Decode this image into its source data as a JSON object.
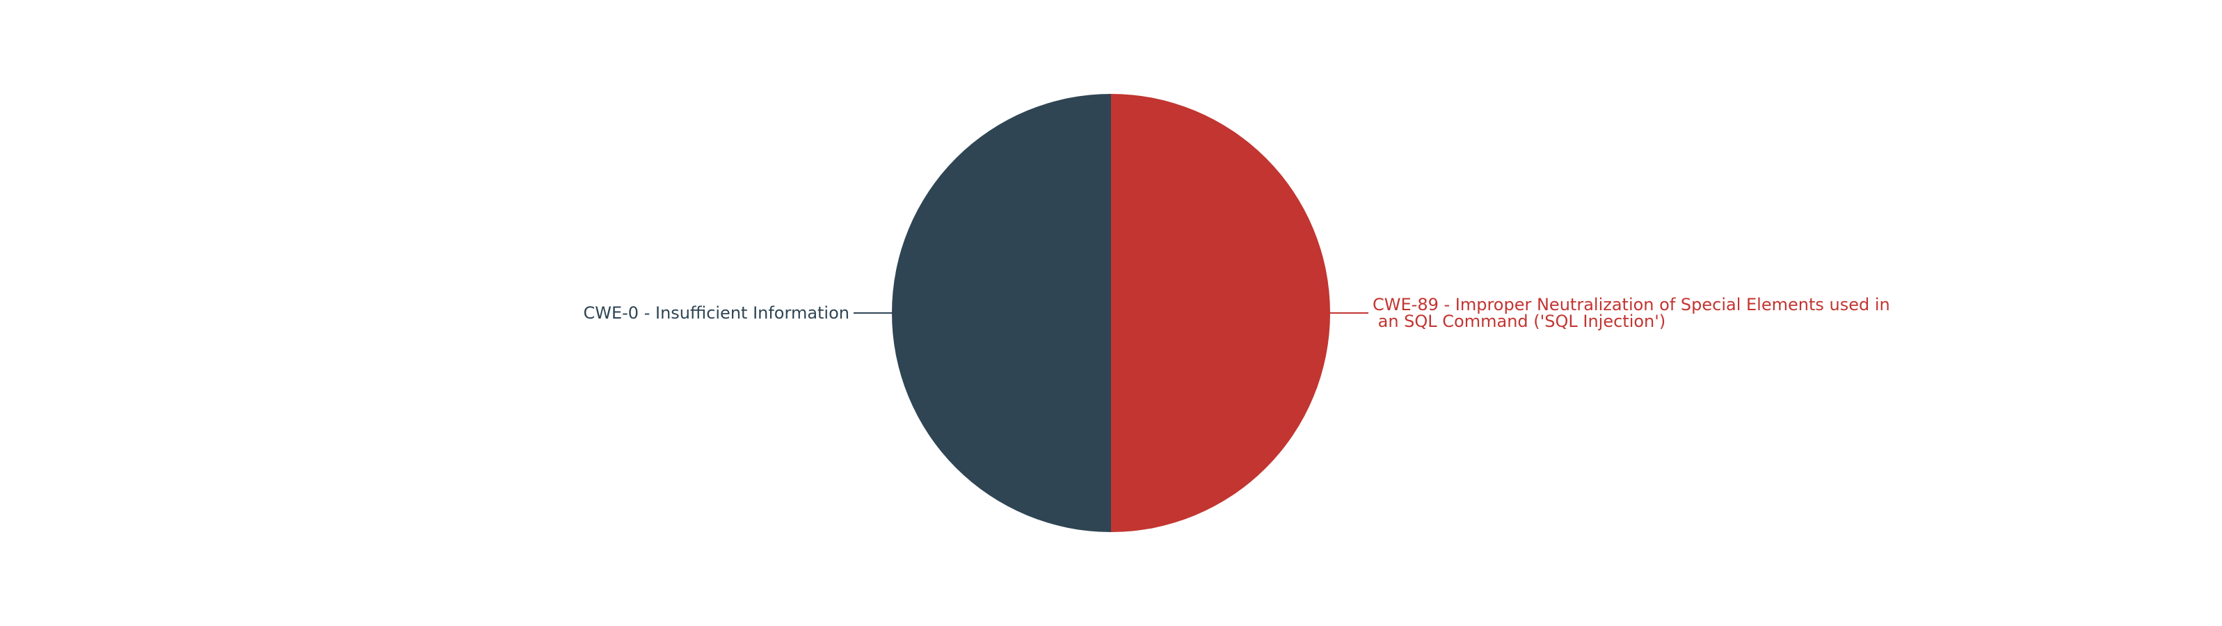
{
  "chart_data": {
    "type": "pie",
    "title": "",
    "slices": [
      {
        "label_lines": [
          "CWE-89 - Improper Neutralization of Special Elements used in",
          " an SQL Command ('SQL Injection')"
        ],
        "value": 1,
        "color": "#c23531"
      },
      {
        "label_lines": [
          "CWE-0 - Insufficient Information"
        ],
        "value": 1,
        "color": "#2f4554"
      }
    ],
    "start_angle_deg": 90,
    "direction": "clockwise",
    "legend": "none"
  }
}
